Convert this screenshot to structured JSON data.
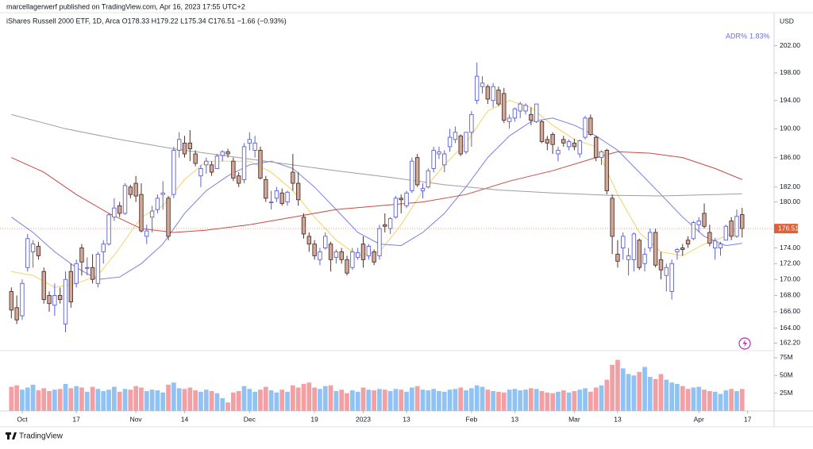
{
  "header": {
    "publisher": "marcellagerwerf published on TradingView.com, Apr 16, 2023 17:55 UTC+2",
    "symbol_legend": "iShares Russell 2000 ETF, 1D, Arca  O178.33 H179.22 L175.34 C176.51 −1.66 (−0.93%)"
  },
  "footer": "TradingView",
  "chart_data": {
    "type": "candlestick",
    "currency": "USD",
    "indicator": {
      "label": "ADR%",
      "value": "1.83%"
    },
    "xlim": [
      -2.1,
      140.9
    ],
    "xticks": [
      {
        "value": 2,
        "label": "Oct"
      },
      {
        "value": 12,
        "label": "17"
      },
      {
        "value": 23,
        "label": "Nov"
      },
      {
        "value": 32,
        "label": "14"
      },
      {
        "value": 44,
        "label": "Dec"
      },
      {
        "value": 56,
        "label": "19"
      },
      {
        "value": 65,
        "label": "2023"
      },
      {
        "value": 73,
        "label": "13"
      },
      {
        "value": 85,
        "label": "Feb"
      },
      {
        "value": 93,
        "label": "13"
      },
      {
        "value": 104,
        "label": "Mar"
      },
      {
        "value": 112,
        "label": "13"
      },
      {
        "value": 127,
        "label": "Apr"
      },
      {
        "value": 136,
        "label": "17"
      }
    ],
    "ylim": [
      161.3,
      206.5
    ],
    "log": true,
    "yticks": [
      {
        "value": 202,
        "label": "202.00"
      },
      {
        "value": 198,
        "label": "198.00"
      },
      {
        "value": 194,
        "label": "194.00"
      },
      {
        "value": 190,
        "label": "190.00"
      },
      {
        "value": 186,
        "label": "186.00"
      },
      {
        "value": 182,
        "label": "182.00"
      },
      {
        "value": 180,
        "label": "180.00"
      },
      {
        "value": 174,
        "label": "174.00"
      },
      {
        "value": 172,
        "label": "172.00"
      },
      {
        "value": 170,
        "label": "170.00"
      },
      {
        "value": 168,
        "label": "168.00"
      },
      {
        "value": 166,
        "label": "166.00"
      },
      {
        "value": 164,
        "label": "164.00"
      },
      {
        "value": 162.2,
        "label": "162.20"
      }
    ],
    "colors": {
      "up_fill": "#ffffff",
      "up_stroke": "#5b5fd6",
      "down_fill": "#d2a898",
      "down_stroke": "#4e342e",
      "volume_up": "#90c3f3",
      "volume_down": "#f3a0a5"
    },
    "open": [
      168.5,
      166.5,
      165.5,
      171.5,
      173.5,
      174.2,
      171,
      168,
      166.8,
      168,
      164.5,
      171,
      169.5,
      174,
      171.5,
      171.5,
      169.5,
      173.5,
      174.5,
      178,
      179.5,
      178.5,
      182,
      182.5,
      181,
      175.5,
      178,
      179,
      181,
      180.5,
      181,
      187,
      188,
      188,
      186.5,
      183.5,
      185,
      185,
      184.5,
      186.3,
      186.8,
      185.5,
      183.5,
      183,
      188,
      187,
      187,
      183,
      180,
      180.5,
      181.2,
      180,
      184,
      182.5,
      178,
      175.5,
      174.5,
      172.5,
      174,
      174.5,
      172.8,
      173.5,
      172.5,
      171.5,
      172.8,
      174.5,
      173,
      173.5,
      173,
      177,
      176.5,
      178,
      180.5,
      179.5,
      181.5,
      186,
      181.5,
      182,
      184.5,
      186.5,
      185,
      187.5,
      188.5,
      189,
      186.8,
      189.5,
      194,
      196,
      196,
      194,
      195.5,
      195,
      191,
      191.5,
      192.5,
      192.5,
      192,
      191,
      191,
      188.5,
      189.2,
      186.5,
      188.5,
      187.5,
      188,
      186.5,
      188.8,
      191.5,
      188.8,
      186,
      187,
      180.5,
      173.2,
      174,
      172.5,
      172.5,
      175,
      172,
      174,
      176,
      172.5,
      170.5,
      168.5,
      173.5,
      174,
      175,
      175.2,
      177,
      178.5,
      176,
      174,
      174,
      175,
      177.5,
      175.5,
      178.33
    ],
    "high": [
      169,
      168,
      170,
      175.8,
      175,
      174.8,
      171.5,
      168.5,
      169.5,
      169,
      171,
      172,
      172.5,
      174.5,
      172.8,
      173.2,
      173.5,
      175,
      178.5,
      180.5,
      180,
      182.5,
      182.3,
      183.5,
      182.5,
      177,
      179.5,
      181,
      182.8,
      180.8,
      187.5,
      189.5,
      189,
      189.8,
      187,
      185,
      186,
      185.5,
      186.5,
      187,
      187.2,
      186,
      184,
      188,
      189.5,
      189,
      187.5,
      183.5,
      181.5,
      182,
      181.8,
      181.5,
      186.5,
      184,
      178.5,
      176,
      175,
      174,
      176,
      174.8,
      173.8,
      174,
      173,
      174,
      174,
      175.5,
      174.5,
      173.8,
      177,
      178.5,
      178,
      180.8,
      181,
      181.5,
      186,
      186.5,
      182.5,
      184.5,
      187.5,
      187.5,
      187,
      190,
      190.3,
      189.2,
      189.5,
      192.5,
      199.5,
      197.5,
      196.3,
      196.5,
      196,
      195.8,
      192,
      193,
      193.8,
      193.6,
      193,
      193.5,
      191.2,
      189,
      189.5,
      187.5,
      189,
      188.5,
      188.6,
      188.5,
      191.8,
      192,
      189,
      187,
      187.2,
      181,
      175,
      176,
      174,
      176,
      175.2,
      174,
      176.5,
      176.5,
      173.5,
      172,
      172.5,
      174,
      174.5,
      175.5,
      177.5,
      178,
      179.8,
      177,
      175.3,
      174.8,
      177,
      178,
      179,
      179.22
    ],
    "low": [
      165.2,
      164.5,
      165,
      171,
      171.5,
      172.5,
      167,
      166,
      165.5,
      167,
      163.5,
      166.5,
      169,
      170.5,
      170.5,
      169.5,
      169,
      172,
      174.3,
      177.5,
      178,
      178.3,
      180.5,
      180,
      176,
      174.5,
      176,
      178.5,
      179,
      175,
      180.5,
      186,
      186,
      185.5,
      184.8,
      182,
      183.8,
      183.5,
      184.5,
      185.5,
      186,
      182.8,
      182,
      182.5,
      187,
      186,
      183,
      180,
      179,
      180,
      179.5,
      179.5,
      181.5,
      179.5,
      175.2,
      173.5,
      172.5,
      171.8,
      173.8,
      171,
      172,
      172,
      170.5,
      171.2,
      172.5,
      171.5,
      172.5,
      171.8,
      172.5,
      176,
      175.8,
      177.8,
      178.5,
      179.2,
      181.2,
      182,
      180.5,
      181.8,
      184,
      185.8,
      184,
      186.8,
      188,
      186.2,
      186.5,
      187.5,
      193.5,
      195,
      193.5,
      193,
      193.2,
      190.8,
      190,
      191,
      191.5,
      192,
      190.5,
      190.8,
      188,
      187,
      186.5,
      185.5,
      187.5,
      187,
      187,
      186,
      188.5,
      189,
      185.5,
      185,
      181,
      173.2,
      171.5,
      172.5,
      170.5,
      171,
      171.2,
      171,
      173.5,
      171.5,
      170,
      168.5,
      167.5,
      172.5,
      173,
      174,
      175,
      176,
      176.5,
      174.2,
      172.5,
      173,
      175,
      175,
      175.3,
      175.34
    ],
    "close": [
      166.2,
      165,
      169.5,
      175.2,
      174.5,
      173,
      167.5,
      167,
      168,
      167.5,
      170,
      167.2,
      172,
      172.2,
      171.5,
      170,
      173.2,
      174.5,
      178.3,
      179.2,
      178.5,
      182.2,
      181,
      180.8,
      176.2,
      176.2,
      178.8,
      180.5,
      181.2,
      175.5,
      187,
      188.5,
      186.5,
      187.2,
      185.2,
      184.5,
      185.5,
      184,
      186.2,
      186.8,
      186.5,
      183.2,
      182.5,
      187.5,
      188.5,
      188,
      183.2,
      180.5,
      180,
      181.5,
      179.8,
      181.3,
      182.5,
      180.3,
      175.8,
      174.5,
      173,
      173.5,
      175.5,
      172.5,
      173.5,
      172.5,
      170.8,
      173.5,
      173.4,
      172.5,
      174.2,
      172.2,
      176.5,
      176.8,
      177.8,
      180.5,
      180.3,
      181.2,
      185.5,
      182.3,
      181.8,
      184.2,
      187,
      186.8,
      186.5,
      188.8,
      189.5,
      186.5,
      189.5,
      192,
      197.5,
      196.5,
      194.2,
      196,
      193.5,
      191.2,
      191.5,
      192.8,
      193.5,
      193.3,
      191.2,
      193.5,
      188.2,
      188,
      187.8,
      187,
      188,
      188.2,
      187.5,
      188.3,
      191.5,
      189.2,
      186,
      186.8,
      181.5,
      175.5,
      172.3,
      175.5,
      173,
      175.8,
      171.5,
      173.2,
      176,
      171.8,
      171.2,
      171.5,
      172,
      173.8,
      173.8,
      174.5,
      177.3,
      177.5,
      176.8,
      174.6,
      174.9,
      174.5,
      176.8,
      175.5,
      178.1,
      176.51
    ],
    "volume_lim": [
      0,
      85
    ],
    "volume_ticks": [
      {
        "value": 75,
        "label": "75M"
      },
      {
        "value": 50,
        "label": "50M"
      },
      {
        "value": 25,
        "label": "25M"
      }
    ],
    "volume": [
      34,
      36,
      30,
      33,
      37,
      29,
      32,
      28,
      30,
      31,
      38,
      32,
      35,
      33,
      27,
      34,
      31,
      28,
      30,
      34,
      27,
      31,
      30,
      35,
      33,
      28,
      30,
      29,
      26,
      37,
      40,
      32,
      31,
      33,
      29,
      27,
      30,
      28,
      25,
      18,
      12,
      26,
      28,
      35,
      31,
      27,
      30,
      34,
      29,
      26,
      30,
      27,
      36,
      33,
      38,
      40,
      33,
      31,
      35,
      36,
      28,
      30,
      25,
      29,
      27,
      33,
      30,
      29,
      31,
      30,
      28,
      31,
      30,
      27,
      33,
      35,
      30,
      29,
      31,
      28,
      27,
      30,
      31,
      33,
      29,
      32,
      36,
      34,
      30,
      28,
      27,
      26,
      30,
      31,
      29,
      30,
      32,
      31,
      28,
      26,
      25,
      27,
      29,
      26,
      28,
      30,
      32,
      27,
      33,
      36,
      44,
      65,
      72,
      60,
      52,
      50,
      55,
      62,
      48,
      45,
      52,
      44,
      40,
      38,
      35,
      31,
      33,
      34,
      30,
      28,
      27,
      24,
      29,
      31,
      28,
      31
    ],
    "moving_averages": [
      {
        "color": "#f2d366",
        "x": [
          0,
          4,
          8,
          12,
          16,
          20,
          24,
          28,
          32,
          36,
          40,
          44,
          48,
          52,
          56,
          60,
          64,
          68,
          72,
          76,
          80,
          84,
          88,
          92,
          96,
          100,
          104,
          108,
          112,
          116,
          120,
          124,
          128,
          132,
          135
        ],
        "values": [
          171,
          170.5,
          169,
          169.5,
          170.5,
          174,
          178,
          179.5,
          183,
          185.5,
          185.5,
          185.5,
          184,
          181.5,
          178,
          175,
          173,
          173.5,
          177,
          181.5,
          185,
          188,
          192.5,
          194,
          193,
          190.5,
          188.5,
          187.5,
          181,
          176,
          173.5,
          173,
          174.5,
          175.5,
          176.8
        ]
      },
      {
        "color": "#7b7fe6",
        "x": [
          0,
          4,
          8,
          12,
          16,
          20,
          24,
          28,
          32,
          36,
          40,
          44,
          48,
          52,
          56,
          60,
          64,
          68,
          72,
          76,
          80,
          84,
          88,
          92,
          96,
          100,
          104,
          108,
          112,
          116,
          120,
          124,
          128,
          132,
          135
        ],
        "values": [
          178,
          176,
          173.5,
          171.5,
          170,
          170.3,
          172,
          174.5,
          178.5,
          181.5,
          183.5,
          185,
          185.5,
          184.5,
          182,
          179,
          176,
          174.5,
          174.3,
          176,
          178.5,
          182,
          186,
          189,
          191,
          191.5,
          190.5,
          189,
          187,
          184,
          181,
          178,
          175.5,
          174.3,
          174.6
        ]
      },
      {
        "color": "#c94a44",
        "x": [
          0,
          6,
          12,
          18,
          24,
          30,
          36,
          44,
          52,
          60,
          68,
          76,
          84,
          92,
          100,
          108,
          112,
          118,
          124,
          130,
          135
        ],
        "values": [
          186,
          184,
          181,
          178.5,
          176.5,
          176,
          176.3,
          177,
          178,
          179,
          179.5,
          180,
          181,
          182.8,
          184.2,
          186,
          186.8,
          186.6,
          186,
          184.5,
          183
        ]
      },
      {
        "color": "#9e9e9e",
        "x": [
          0,
          10,
          20,
          30,
          40,
          50,
          60,
          70,
          80,
          90,
          100,
          110,
          120,
          130,
          135
        ],
        "values": [
          192,
          190,
          188.5,
          187.2,
          186.2,
          185.2,
          184.2,
          183.3,
          182.3,
          181.6,
          181.2,
          180.9,
          180.8,
          181,
          181.1
        ]
      }
    ]
  }
}
